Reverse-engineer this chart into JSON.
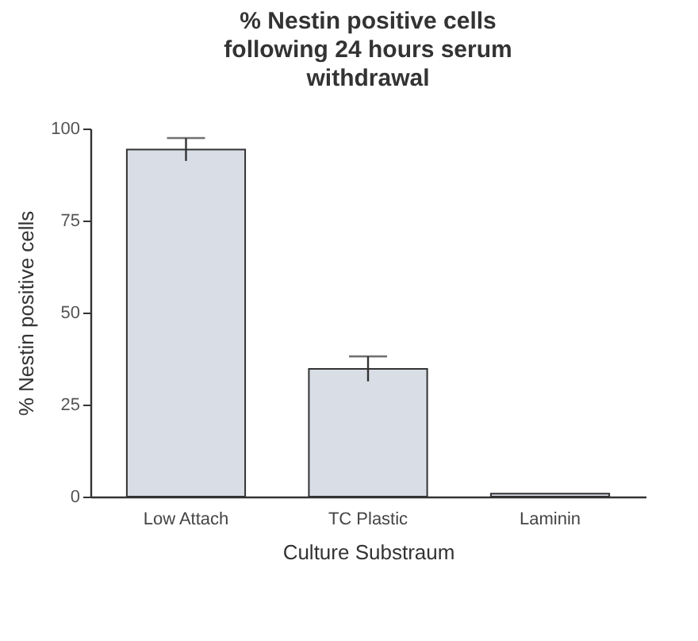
{
  "chart_data": {
    "type": "bar",
    "title": "% Nestin positive cells following 24 hours serum withdrawal",
    "xlabel": "Culture Substraum",
    "ylabel": "% Nestin positive cells",
    "categories": [
      "Low Attach",
      "TC Plastic",
      "Laminin"
    ],
    "values": [
      94.3,
      34.7,
      0.8
    ],
    "errors": [
      3.1,
      3.4,
      null
    ],
    "color": "#d9dde6",
    "ylim": [
      0,
      100
    ],
    "yticks": [
      0,
      25,
      50,
      75,
      100
    ],
    "grid": false
  }
}
